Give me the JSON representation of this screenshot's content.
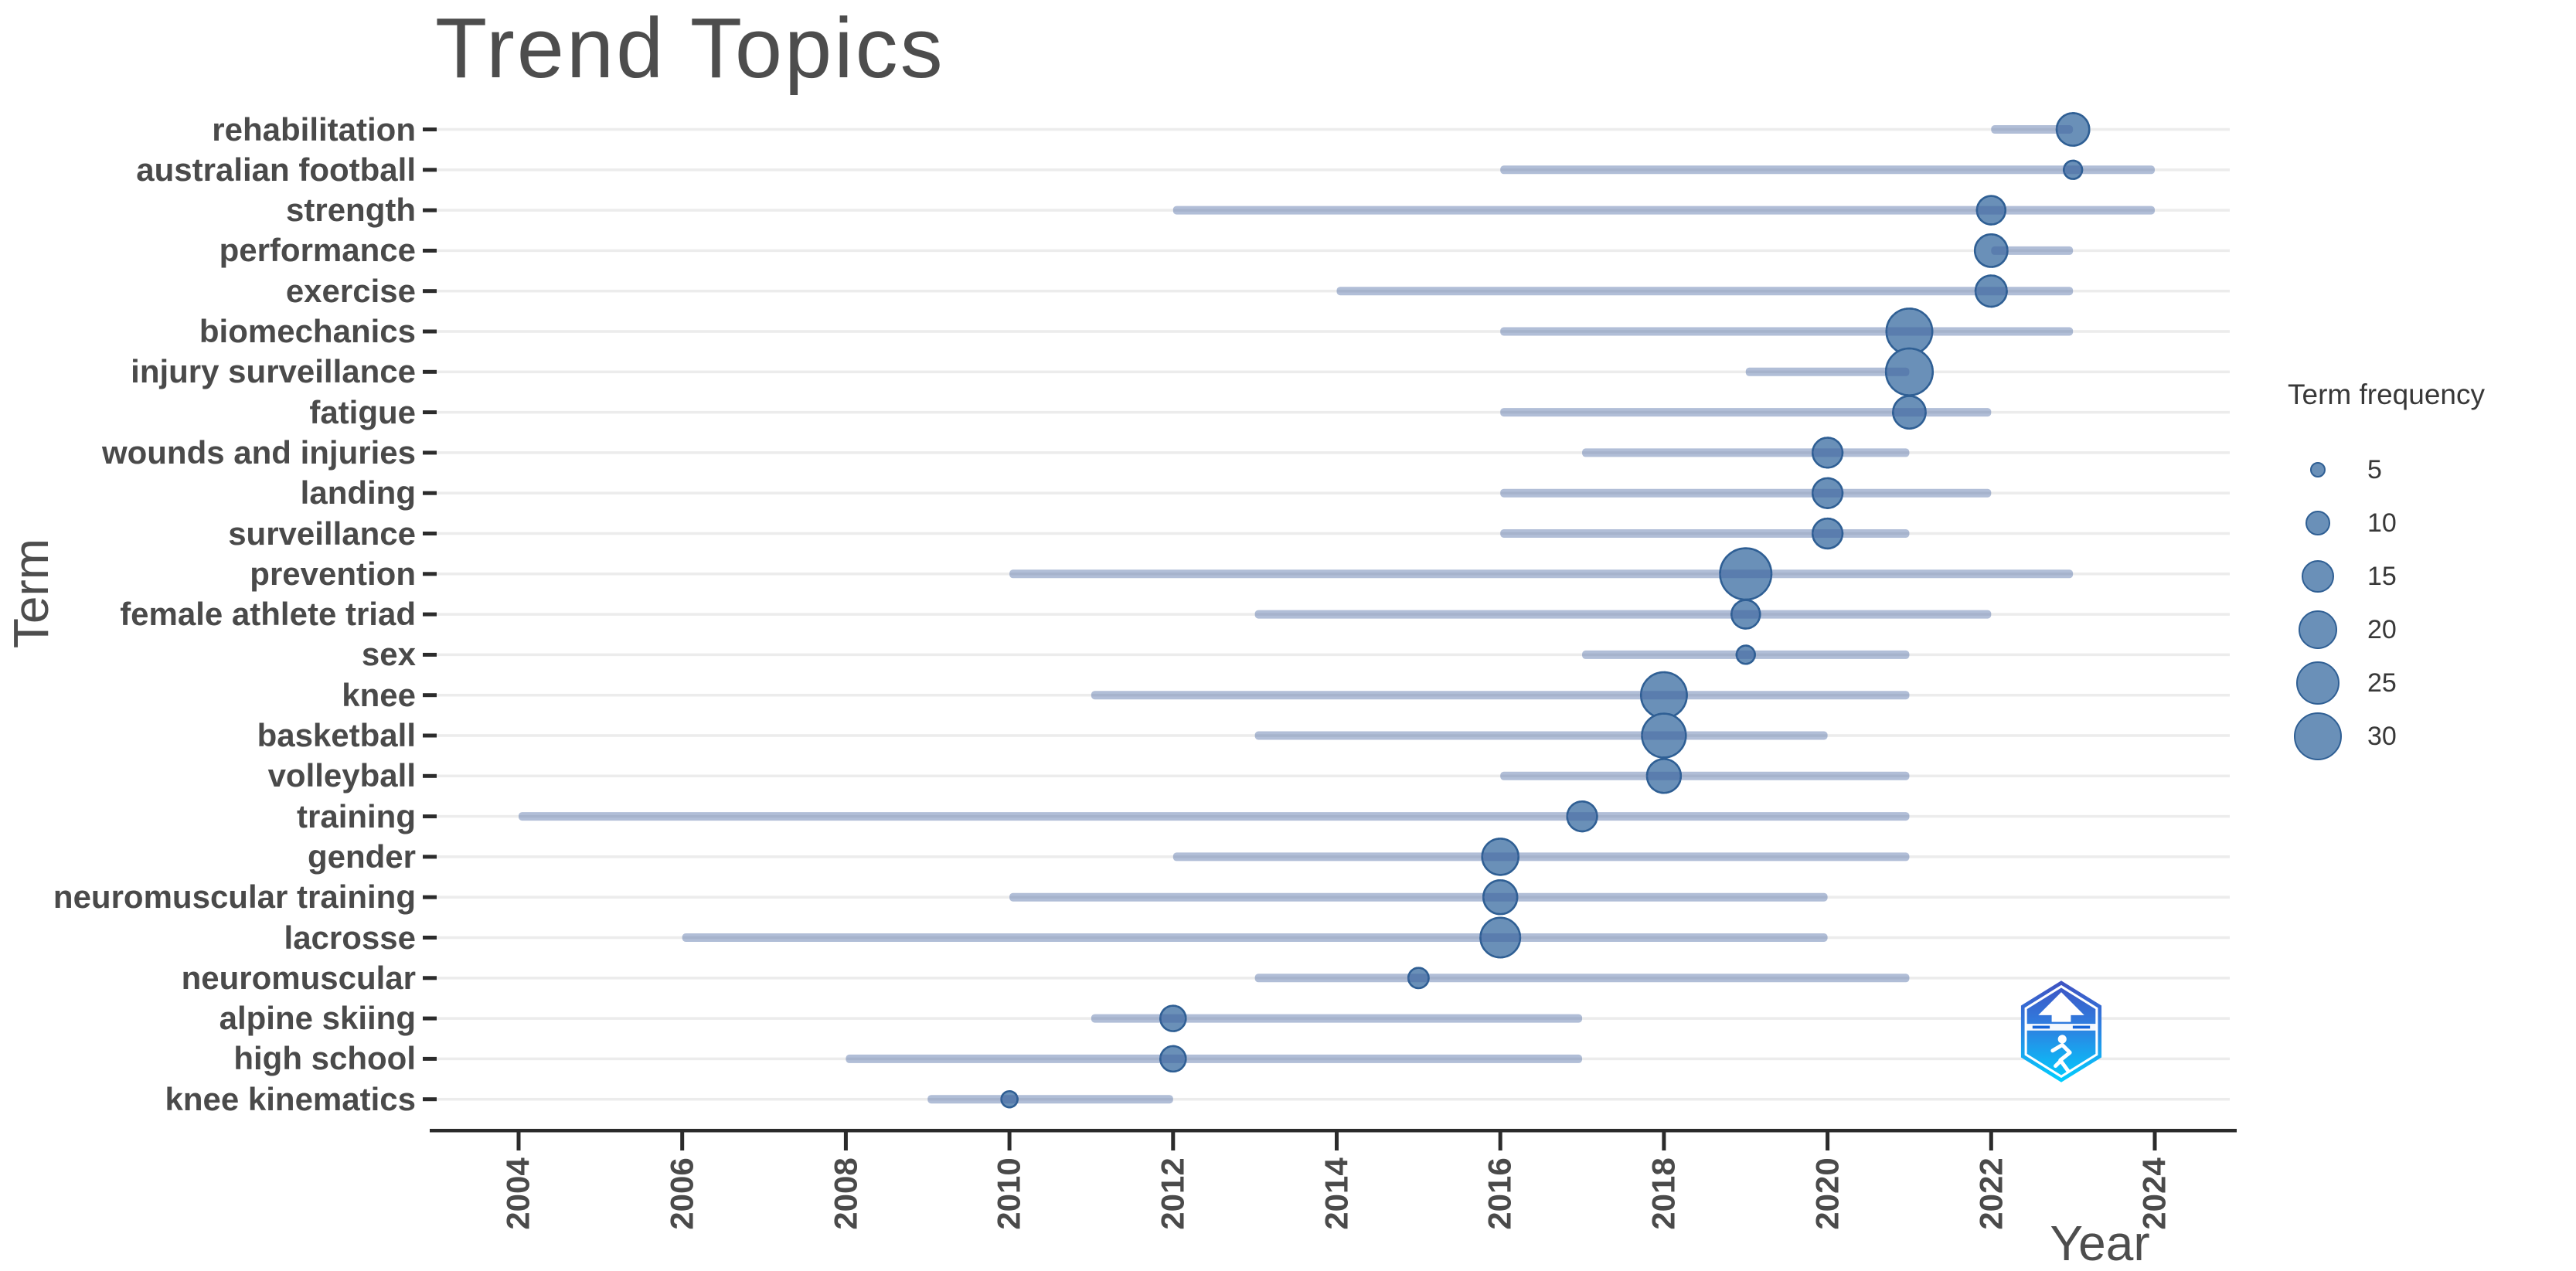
{
  "chart_data": {
    "type": "scatter",
    "subtype": "bubble-timeline",
    "title": "Trend Topics",
    "xlabel": "Year",
    "ylabel": "Term",
    "xlim": [
      2003,
      2025
    ],
    "x_ticks": [
      2004,
      2006,
      2008,
      2010,
      2012,
      2014,
      2016,
      2018,
      2020,
      2022,
      2024
    ],
    "grid": "horizontal",
    "legend": {
      "title": "Term frequency",
      "position": "right",
      "values": [
        5,
        10,
        15,
        20,
        25,
        30
      ]
    },
    "terms": [
      {
        "term": "rehabilitation",
        "year": 2023,
        "freq": 15,
        "q1": 2022,
        "q3": 2023
      },
      {
        "term": "australian football",
        "year": 2023,
        "freq": 6,
        "q1": 2016,
        "q3": 2024
      },
      {
        "term": "strength",
        "year": 2022,
        "freq": 12,
        "q1": 2012,
        "q3": 2024
      },
      {
        "term": "performance",
        "year": 2022,
        "freq": 15,
        "q1": 2022,
        "q3": 2023
      },
      {
        "term": "exercise",
        "year": 2022,
        "freq": 14,
        "q1": 2014,
        "q3": 2023
      },
      {
        "term": "biomechanics",
        "year": 2021,
        "freq": 27,
        "q1": 2016,
        "q3": 2023
      },
      {
        "term": "injury surveillance",
        "year": 2021,
        "freq": 28,
        "q1": 2019,
        "q3": 2021
      },
      {
        "term": "fatigue",
        "year": 2021,
        "freq": 15,
        "q1": 2016,
        "q3": 2022
      },
      {
        "term": "wounds and injuries",
        "year": 2020,
        "freq": 13,
        "q1": 2017,
        "q3": 2021
      },
      {
        "term": "landing",
        "year": 2020,
        "freq": 13,
        "q1": 2016,
        "q3": 2022
      },
      {
        "term": "surveillance",
        "year": 2020,
        "freq": 13,
        "q1": 2016,
        "q3": 2021
      },
      {
        "term": "prevention",
        "year": 2019,
        "freq": 33,
        "q1": 2010,
        "q3": 2023
      },
      {
        "term": "female athlete triad",
        "year": 2019,
        "freq": 12,
        "q1": 2013,
        "q3": 2022
      },
      {
        "term": "sex",
        "year": 2019,
        "freq": 6,
        "q1": 2017,
        "q3": 2021
      },
      {
        "term": "knee",
        "year": 2018,
        "freq": 27,
        "q1": 2011,
        "q3": 2021
      },
      {
        "term": "basketball",
        "year": 2018,
        "freq": 25,
        "q1": 2013,
        "q3": 2020
      },
      {
        "term": "volleyball",
        "year": 2018,
        "freq": 16,
        "q1": 2016,
        "q3": 2021
      },
      {
        "term": "training",
        "year": 2017,
        "freq": 13,
        "q1": 2004,
        "q3": 2021
      },
      {
        "term": "gender",
        "year": 2016,
        "freq": 18,
        "q1": 2012,
        "q3": 2021
      },
      {
        "term": "neuromuscular training",
        "year": 2016,
        "freq": 16,
        "q1": 2010,
        "q3": 2020
      },
      {
        "term": "lacrosse",
        "year": 2016,
        "freq": 21,
        "q1": 2006,
        "q3": 2020
      },
      {
        "term": "neuromuscular",
        "year": 2015,
        "freq": 7,
        "q1": 2013,
        "q3": 2021
      },
      {
        "term": "alpine skiing",
        "year": 2012,
        "freq": 10,
        "q1": 2011,
        "q3": 2017
      },
      {
        "term": "high school",
        "year": 2012,
        "freq": 10,
        "q1": 2008,
        "q3": 2017
      },
      {
        "term": "knee kinematics",
        "year": 2010,
        "freq": 5,
        "q1": 2009,
        "q3": 2012
      }
    ],
    "colors": {
      "bubble_fill": "#6a90b8",
      "bubble_stroke": "#2f5f94",
      "range_line": "#4664a0",
      "range_line_alpha": 0.42,
      "grid": "#ececec",
      "axis": "#2b2b2b",
      "axis_text": "#4a4a4a",
      "title_text": "#4d4d4d",
      "legend_text": "#383838"
    }
  },
  "logo": {
    "name": "hexagonal-sports-badge",
    "colors": {
      "top": "#3f51c1",
      "middle": "#2f7fe0",
      "bottom": "#00cfff"
    }
  }
}
